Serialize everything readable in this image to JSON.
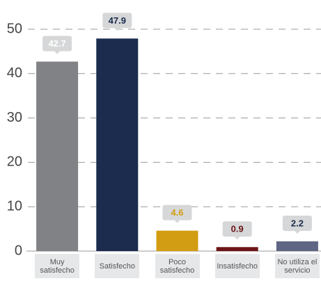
{
  "chart_data": {
    "type": "bar",
    "categories": [
      "Muy satisfecho",
      "Satisfecho",
      "Poco satisfecho",
      "Insatisfecho",
      "No utiliza el servicio"
    ],
    "values": [
      42.7,
      47.9,
      4.6,
      0.9,
      2.2
    ],
    "colors": [
      "#808285",
      "#1b2c4e",
      "#d29d13",
      "#6b1418",
      "#5f6683"
    ],
    "label_colors": [
      "#ffffff",
      "#1b2c4e",
      "#d29d13",
      "#6b1418",
      "#1b2c4e"
    ],
    "ylim": [
      0,
      50
    ],
    "yticks": [
      0,
      10,
      20,
      30,
      40,
      50
    ],
    "grid": true
  }
}
